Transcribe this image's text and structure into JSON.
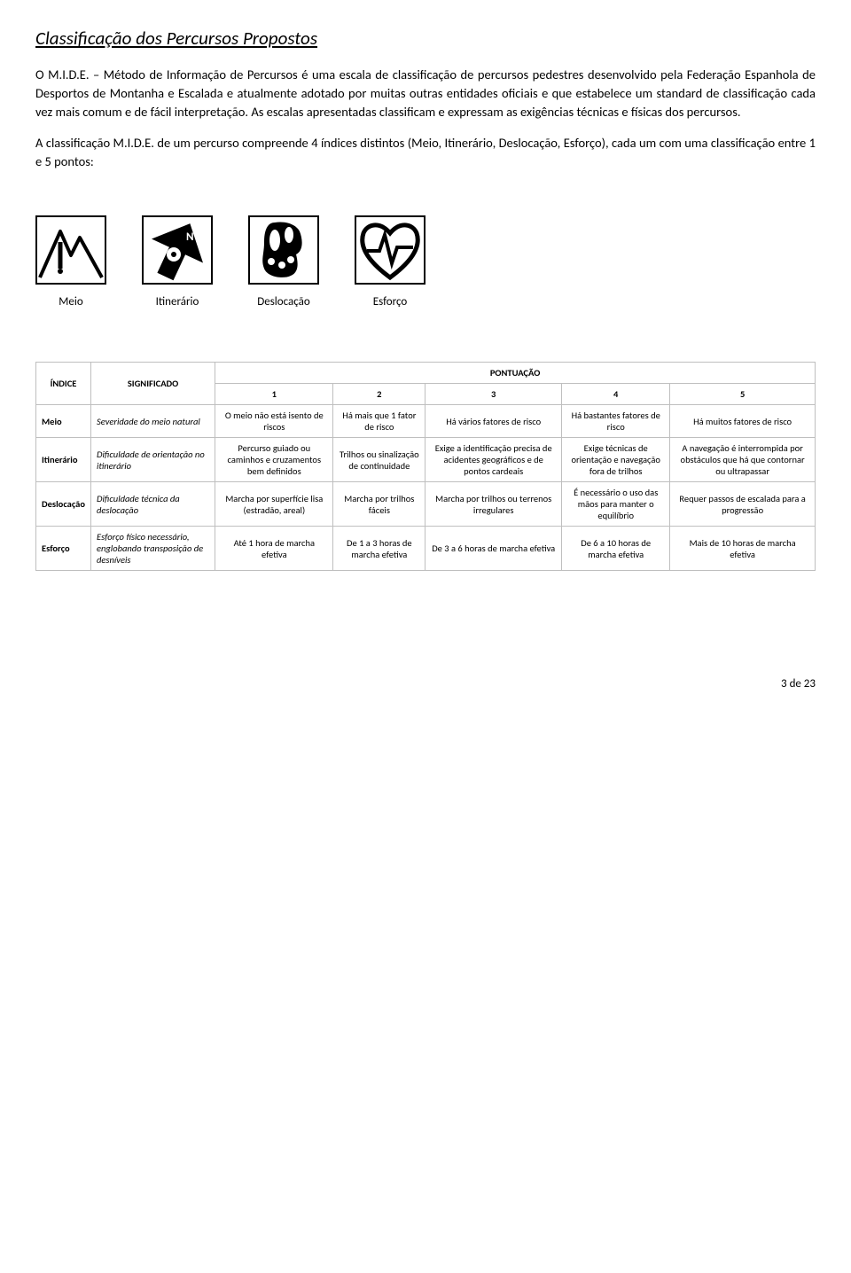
{
  "heading": "Classificação dos Percursos Propostos",
  "paragraph1": "O M.I.D.E. – Método de Informação de Percursos é uma escala de classificação de percursos pedestres desenvolvido pela Federação Espanhola de Desportos de Montanha e Escalada e atualmente adotado por muitas outras entidades oficiais e que estabelece um standard de classificação cada vez mais comum e de fácil interpretação. As escalas apresentadas classificam e expressam as exigências técnicas e físicas dos percursos.",
  "paragraph2": "A classificação M.I.D.E. de um percurso   compreende 4 índices distintos (Meio, Itinerário, Deslocação, Esforço), cada um com uma classificação entre 1 e 5 pontos:",
  "iconLabels": {
    "meio": "Meio",
    "itinerario": "Itinerário",
    "deslocacao": "Deslocação",
    "esforco": "Esforço"
  },
  "table": {
    "headerIndice": "ÍNDICE",
    "headerSignificado": "SIGNIFICADO",
    "headerPontuacao": "PONTUAÇÃO",
    "cols": [
      "1",
      "2",
      "3",
      "4",
      "5"
    ],
    "rows": [
      {
        "label": "Meio",
        "sig": "Severidade do meio natural",
        "cells": [
          "O meio não está isento de riscos",
          "Há mais que 1 fator de risco",
          "Há vários fatores de risco",
          "Há bastantes fatores de risco",
          "Há muitos fatores de risco"
        ]
      },
      {
        "label": "Itinerário",
        "sig": "Dificuldade de orientação no itinerário",
        "cells": [
          "Percurso guiado ou caminhos e cruzamentos bem definidos",
          "Trilhos ou sinalização de continuidade",
          "Exige a identificação precisa de acidentes geográficos e de pontos cardeais",
          "Exige técnicas de orientação e navegação fora de trilhos",
          "A navegação é interrompida por obstáculos que há que contornar ou ultrapassar"
        ]
      },
      {
        "label": "Deslocação",
        "sig": "Dificuldade técnica da deslocação",
        "cells": [
          "Marcha por superfície lisa (estradão, areal)",
          "Marcha por trilhos fáceis",
          "Marcha por trilhos ou terrenos irregulares",
          "É necessário o uso das mãos para manter o equilíbrio",
          "Requer passos de escalada para a progressão"
        ]
      },
      {
        "label": "Esforço",
        "sig": "Esforço físico necessário, englobando transposição de desníveis",
        "cells": [
          "Até 1 hora de marcha efetiva",
          "De 1 a 3 horas de marcha efetiva",
          "De 3 a 6 horas de marcha efetiva",
          "De 6 a 10 horas de marcha efetiva",
          "Mais de 10 horas de marcha efetiva"
        ]
      }
    ]
  },
  "footer": "3 de 23",
  "colors": {
    "border": "#bfbfbf",
    "text": "#000000",
    "background": "#ffffff"
  },
  "layout": {
    "pageWidth": 960,
    "pageHeight": 1436
  }
}
